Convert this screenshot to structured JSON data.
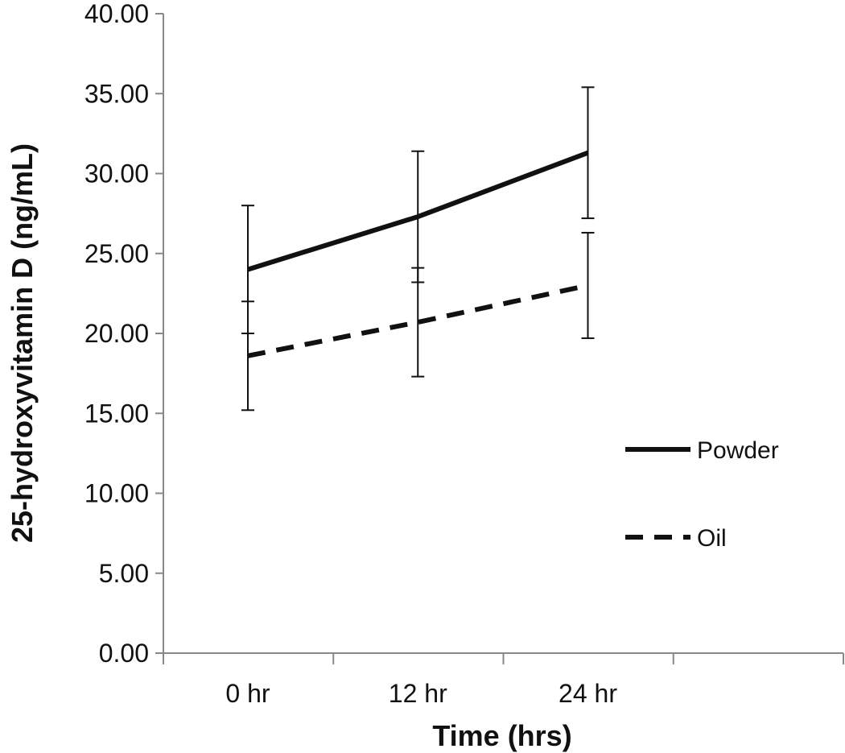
{
  "chart_data": {
    "type": "line",
    "title": "",
    "xlabel": "Time (hrs)",
    "ylabel": "25-hydroxyvitamin D (ng/mL)",
    "categories": [
      "0 hr",
      "12 hr",
      "24 hr"
    ],
    "ylim": [
      0,
      40
    ],
    "y_ticks": [
      "0.00",
      "5.00",
      "10.00",
      "15.00",
      "20.00",
      "25.00",
      "30.00",
      "35.00",
      "40.00"
    ],
    "grid": false,
    "legend_position": "right",
    "series": [
      {
        "name": "Powder",
        "line_style": "solid",
        "color": "#111111",
        "values": [
          24.0,
          27.3,
          31.3
        ],
        "error": [
          4.0,
          4.1,
          4.1
        ]
      },
      {
        "name": "Oil",
        "line_style": "dashed",
        "color": "#111111",
        "values": [
          18.6,
          20.7,
          23.0
        ],
        "error": [
          3.4,
          3.4,
          3.3
        ]
      }
    ]
  }
}
